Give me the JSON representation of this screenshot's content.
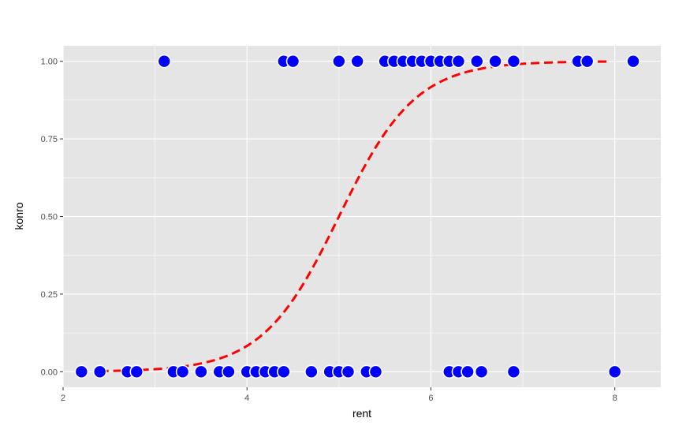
{
  "chart_data": {
    "type": "scatter",
    "title": "",
    "xlabel": "rent",
    "ylabel": "konro",
    "xlim": [
      2.0,
      8.5
    ],
    "ylim": [
      -0.05,
      1.05
    ],
    "x_ticks": [
      2,
      4,
      6,
      8
    ],
    "x_tick_labels": [
      "2",
      "4",
      "6",
      "8"
    ],
    "y_ticks": [
      0,
      0.25,
      0.5,
      0.75,
      1.0
    ],
    "y_tick_labels": [
      "0.00",
      "0.25",
      "0.50",
      "0.75",
      "1.00"
    ],
    "grid": true,
    "legend": "none",
    "colors": {
      "panel_bg": "#e5e5e5",
      "grid": "#ffffff",
      "points": "#0000ff",
      "point_outline": "#ffffff",
      "curve": "#ff0000"
    },
    "points": {
      "x": [
        3.1,
        4.4,
        4.5,
        5.0,
        5.2,
        5.5,
        5.6,
        5.7,
        5.8,
        5.9,
        6.0,
        6.1,
        6.2,
        6.3,
        6.5,
        6.7,
        6.9,
        7.6,
        7.7,
        8.2,
        2.2,
        2.4,
        2.7,
        2.8,
        3.2,
        3.3,
        3.5,
        3.7,
        3.8,
        4.0,
        4.1,
        4.2,
        4.3,
        4.4,
        4.7,
        4.9,
        5.0,
        5.1,
        5.3,
        5.4,
        6.2,
        6.3,
        6.4,
        6.55,
        6.9,
        8.0
      ],
      "y": [
        1,
        1,
        1,
        1,
        1,
        1,
        1,
        1,
        1,
        1,
        1,
        1,
        1,
        1,
        1,
        1,
        1,
        1,
        1,
        1,
        0,
        0,
        0,
        0,
        0,
        0,
        0,
        0,
        0,
        0,
        0,
        0,
        0,
        0,
        0,
        0,
        0,
        0,
        0,
        0,
        0,
        0,
        0,
        0,
        0,
        0
      ]
    },
    "fitted_curve": {
      "style": "dashed",
      "x_range": [
        2.4,
        7.95
      ],
      "model": "logistic",
      "intercept": -12.0,
      "slope": 2.4
    }
  }
}
